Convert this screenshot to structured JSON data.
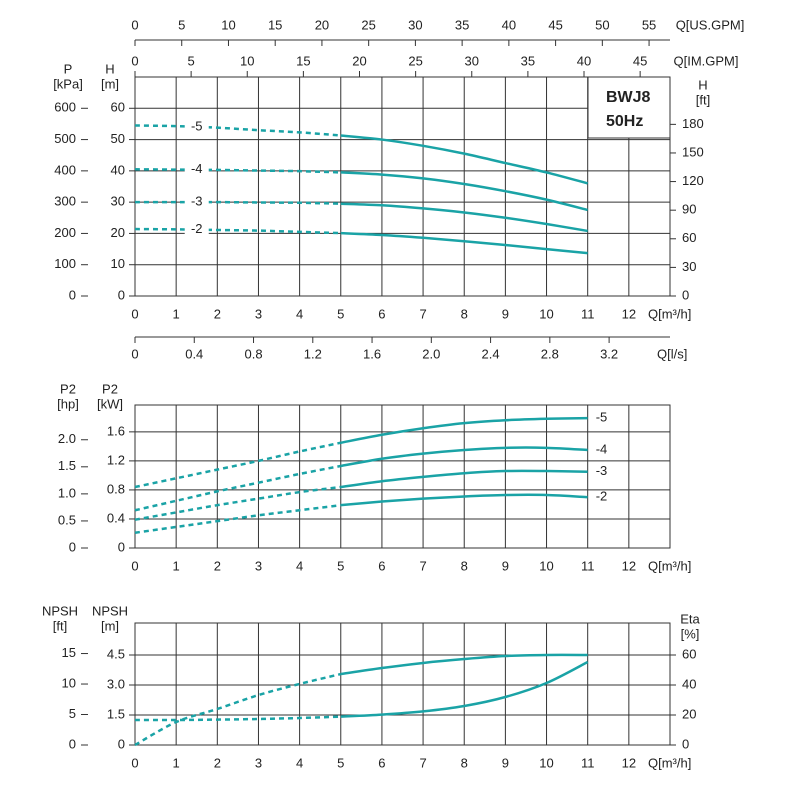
{
  "chart_data": [
    {
      "type": "line",
      "title": "BWJ8",
      "subtitle": "50Hz",
      "x_label": "Q[m³/h]",
      "x": [
        0,
        1,
        2,
        3,
        4,
        5,
        6,
        7,
        8,
        9,
        10,
        11
      ],
      "xlim": [
        0,
        13
      ],
      "xticks": [
        0,
        1,
        2,
        3,
        4,
        5,
        6,
        7,
        8,
        9,
        10,
        11,
        12
      ],
      "ylabel": [
        "H",
        "[m]"
      ],
      "ylim": [
        0,
        70
      ],
      "yticks": [
        0,
        10,
        20,
        30,
        40,
        50,
        60
      ],
      "y2label": [
        "H",
        "[ft]"
      ],
      "y2lim": [
        0,
        229.66
      ],
      "y2ticks": [
        0,
        30,
        60,
        90,
        120,
        150,
        180
      ],
      "y3label": [
        "P",
        "[kPa]"
      ],
      "y3lim": [
        0,
        700
      ],
      "y3ticks": [
        0,
        100,
        200,
        300,
        400,
        500,
        600
      ],
      "x_axes_extra": [
        {
          "label": "Q[US.GPM]",
          "lim": [
            0,
            57.24
          ],
          "ticks": [
            0,
            5,
            10,
            15,
            20,
            25,
            30,
            35,
            40,
            45,
            50,
            55
          ]
        },
        {
          "label": "Q[IM.GPM]",
          "lim": [
            0,
            47.66
          ],
          "ticks": [
            0,
            5,
            10,
            15,
            20,
            25,
            30,
            35,
            40,
            45
          ]
        },
        {
          "label": "Q[l/s]",
          "lim": [
            0,
            3.611
          ],
          "ticks": [
            0,
            0.4,
            0.8,
            1.2,
            1.6,
            {
              "value": 2,
              "label": "2.0"
            },
            2.4,
            2.8,
            3.2
          ]
        }
      ],
      "grid": true,
      "dashed_below_x": 5,
      "series": [
        {
          "name": "-5",
          "color": "#1aa3a6",
          "values": [
            54.5,
            54.3,
            53.8,
            53,
            52.3,
            51.3,
            50,
            48,
            45.5,
            42.5,
            39.5,
            36
          ]
        },
        {
          "name": "-4",
          "color": "#1aa3a6",
          "values": [
            40.5,
            40.4,
            40.3,
            40.1,
            39.9,
            39.5,
            38.8,
            37.6,
            35.8,
            33.5,
            30.8,
            27.5
          ]
        },
        {
          "name": "-3",
          "color": "#1aa3a6",
          "values": [
            30,
            30,
            30,
            29.9,
            29.8,
            29.5,
            29,
            28,
            26.7,
            25,
            23,
            20.8
          ]
        },
        {
          "name": "-2",
          "color": "#1aa3a6",
          "values": [
            21.4,
            21.3,
            21.1,
            20.9,
            20.5,
            20.1,
            19.5,
            18.6,
            17.5,
            16.3,
            15,
            13.7
          ]
        }
      ]
    },
    {
      "type": "line",
      "x_label": "Q[m³/h]",
      "x": [
        0,
        1,
        2,
        3,
        4,
        5,
        6,
        7,
        8,
        9,
        10,
        11
      ],
      "xlim": [
        0,
        13
      ],
      "xticks": [
        0,
        1,
        2,
        3,
        4,
        5,
        6,
        7,
        8,
        9,
        10,
        11,
        12
      ],
      "ylabel": [
        "P2",
        "[kW]"
      ],
      "ylim": [
        0,
        1.97
      ],
      "yticks": [
        0,
        0.4,
        0.8,
        1.2,
        1.6
      ],
      "y3label": [
        "P2",
        "[hp]"
      ],
      "y3lim": [
        0,
        2.642
      ],
      "y3ticks": [
        0,
        0.5,
        {
          "value": 1,
          "label": "1.0"
        },
        1.5,
        {
          "value": 2,
          "label": "2.0"
        }
      ],
      "grid": true,
      "dashed_below_x": 5,
      "series": [
        {
          "name": "-5",
          "color": "#1aa3a6",
          "values": [
            0.84,
            0.96,
            1.08,
            1.2,
            1.33,
            1.45,
            1.56,
            1.65,
            1.72,
            1.76,
            1.78,
            1.79
          ]
        },
        {
          "name": "-4",
          "color": "#1aa3a6",
          "values": [
            0.52,
            0.65,
            0.78,
            0.9,
            1.02,
            1.13,
            1.23,
            1.3,
            1.35,
            1.38,
            1.38,
            1.35
          ]
        },
        {
          "name": "-3",
          "color": "#1aa3a6",
          "values": [
            0.39,
            0.49,
            0.59,
            0.68,
            0.77,
            0.84,
            0.92,
            0.98,
            1.03,
            1.06,
            1.06,
            1.05
          ]
        },
        {
          "name": "-2",
          "color": "#1aa3a6",
          "values": [
            0.21,
            0.29,
            0.37,
            0.45,
            0.52,
            0.59,
            0.64,
            0.68,
            0.71,
            0.73,
            0.73,
            0.7
          ]
        }
      ]
    },
    {
      "type": "line",
      "x_label": "Q[m³/h]",
      "x": [
        0,
        1,
        2,
        3,
        4,
        5,
        6,
        7,
        8,
        9,
        10,
        11
      ],
      "xlim": [
        0,
        13
      ],
      "xticks": [
        0,
        1,
        2,
        3,
        4,
        5,
        6,
        7,
        8,
        9,
        10,
        11,
        12
      ],
      "ylabel": [
        "NPSH",
        "[m]"
      ],
      "ylim": [
        0,
        6.1
      ],
      "yticks": [
        0,
        1.5,
        {
          "value": 3,
          "label": "3.0"
        },
        4.5
      ],
      "y3label": [
        "NPSH",
        "[ft]"
      ],
      "y3lim": [
        0,
        20.01
      ],
      "y3ticks": [
        0,
        5,
        10,
        15
      ],
      "y2label": [
        "Eta",
        "[%]"
      ],
      "y2lim": [
        0,
        81.33
      ],
      "y2ticks": [
        0,
        20,
        40,
        60
      ],
      "grid": true,
      "dashed_below_x": 5,
      "series": [
        {
          "color": "#1aa3a6",
          "values": [
            1.25,
            1.25,
            1.27,
            1.3,
            1.35,
            1.42,
            1.52,
            1.68,
            1.95,
            2.4,
            3.1,
            4.15
          ]
        },
        {
          "color": "#1aa3a6",
          "axis": "y2",
          "values": [
            0,
            15.3,
            24,
            33.3,
            40.7,
            47.3,
            51.3,
            54.7,
            57.3,
            59.3,
            60,
            60
          ]
        }
      ]
    }
  ]
}
